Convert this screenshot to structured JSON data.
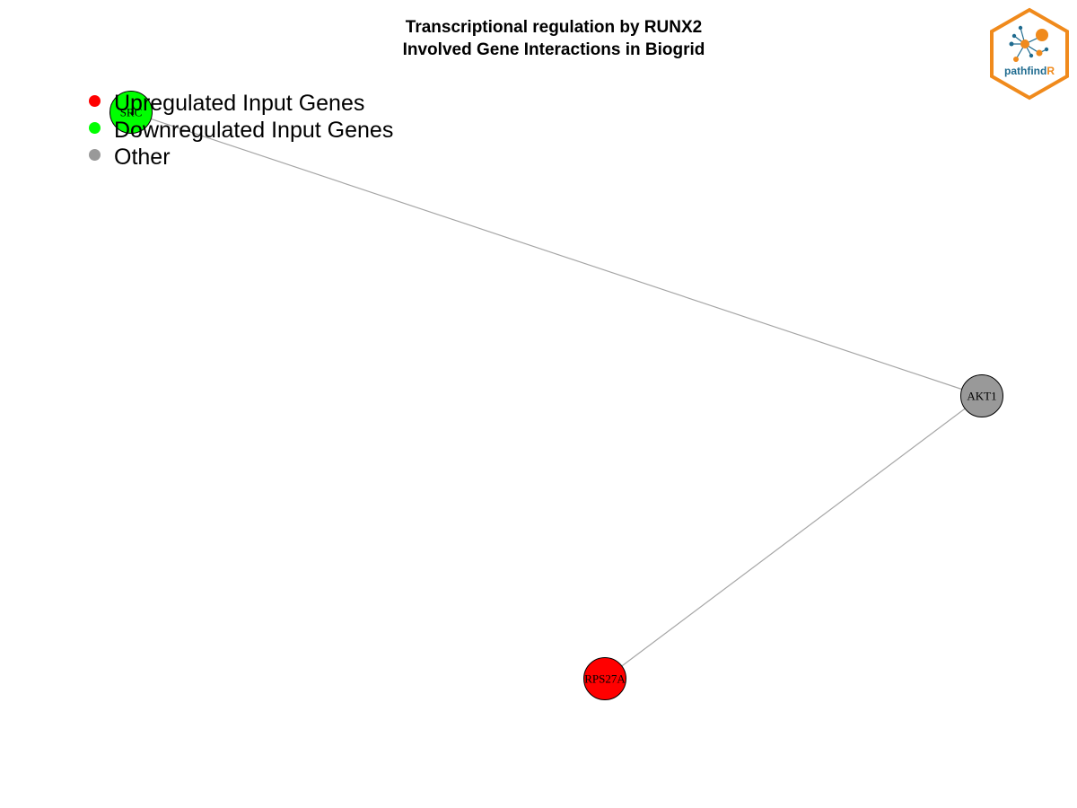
{
  "title": {
    "line1": "Transcriptional regulation by RUNX2",
    "line2": "Involved Gene Interactions in Biogrid"
  },
  "legend": [
    {
      "label": "Upregulated Input Genes",
      "color": "#ff0000"
    },
    {
      "label": "Downregulated Input Genes",
      "color": "#00ff00"
    },
    {
      "label": "Other",
      "color": "#999999"
    }
  ],
  "nodes": [
    {
      "id": "SRC",
      "label": "SRC",
      "category": "downregulated",
      "color": "#00ff00"
    },
    {
      "id": "AKT1",
      "label": "AKT1",
      "category": "other",
      "color": "#999999"
    },
    {
      "id": "RPS27A",
      "label": "RPS27A",
      "category": "upregulated",
      "color": "#ff0000"
    }
  ],
  "edges": [
    {
      "source": "SRC",
      "target": "AKT1"
    },
    {
      "source": "AKT1",
      "target": "RPS27A"
    }
  ],
  "logo": {
    "text_main": "pathfind",
    "text_accent": "R",
    "main_color": "#1f6b8f",
    "accent_color": "#f08a1c"
  }
}
